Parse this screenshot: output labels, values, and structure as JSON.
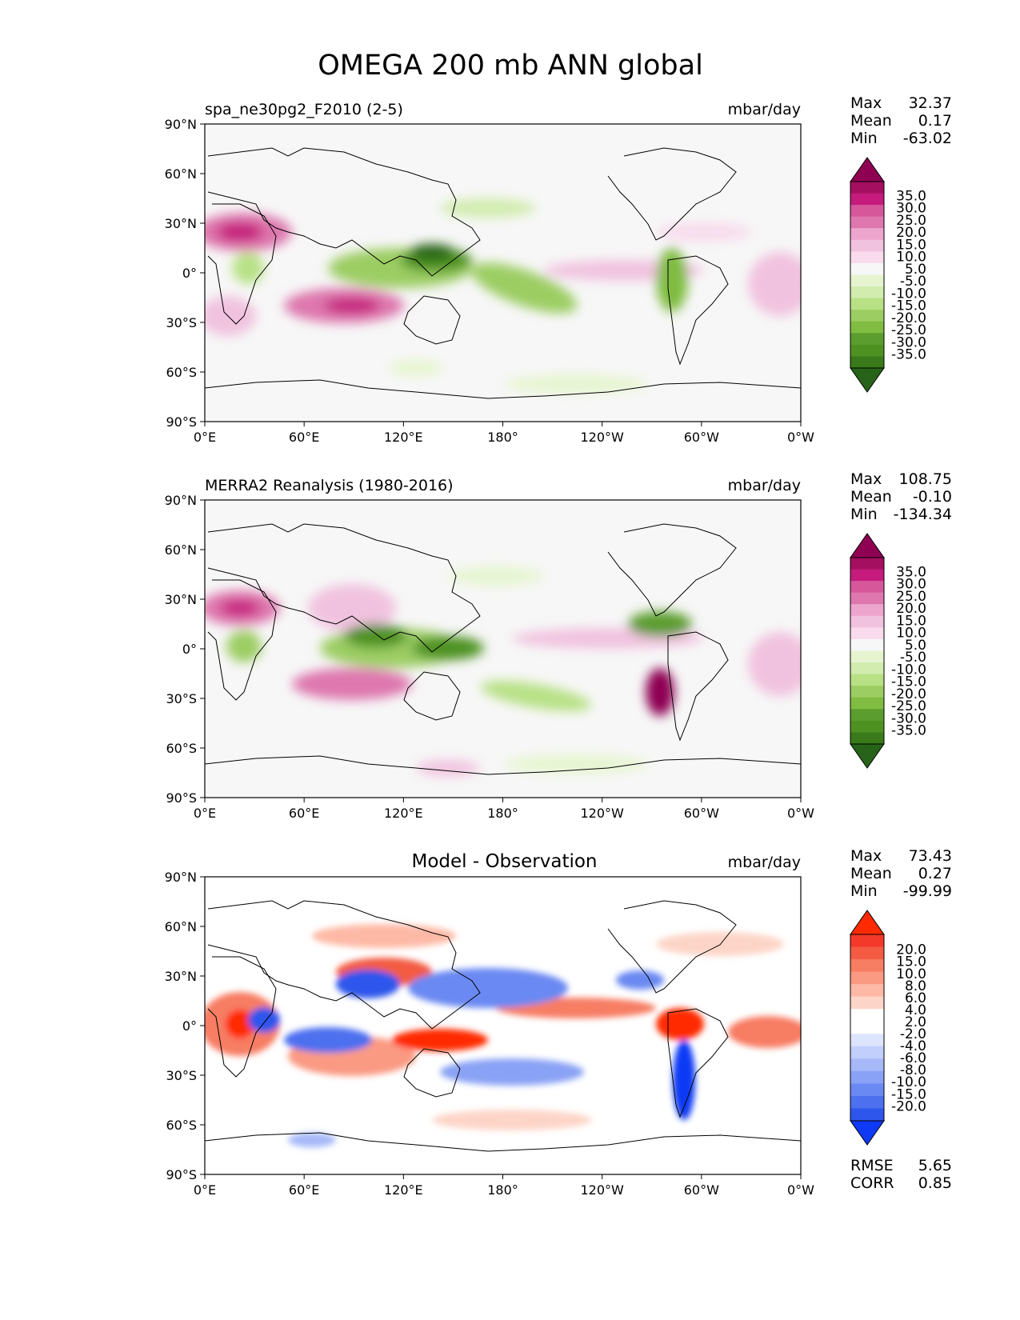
{
  "figure": {
    "title": "OMEGA 200 mb ANN global",
    "x_ticks": [
      "0°E",
      "60°E",
      "120°E",
      "180°",
      "120°W",
      "60°W",
      "0°W"
    ],
    "y_ticks": [
      "90°N",
      "60°N",
      "30°N",
      "0°",
      "30°S",
      "60°S",
      "90°S"
    ]
  },
  "panels": [
    {
      "title": "spa_ne30pg2_F2010 (2-5)",
      "units": "mbar/day",
      "stats": [
        {
          "label": "Max",
          "value": "32.37"
        },
        {
          "label": "Mean",
          "value": "0.17"
        },
        {
          "label": "Min",
          "value": "-63.02"
        }
      ],
      "colorbar": {
        "labels": [
          "35.0",
          "30.0",
          "25.0",
          "20.0",
          "15.0",
          "10.0",
          "5.0",
          "-5.0",
          "-10.0",
          "-15.0",
          "-20.0",
          "-25.0",
          "-30.0",
          "-35.0"
        ],
        "colors": [
          "#8e0152",
          "#a50f5f",
          "#c51b7d",
          "#d6589b",
          "#de77ae",
          "#eea5cd",
          "#f1c2df",
          "#f8dced",
          "#f7f7f7",
          "#e6f5d0",
          "#d1ecae",
          "#b8e186",
          "#9ccd63",
          "#7fbc41",
          "#5b9d2e",
          "#4d9221",
          "#3a7a1a",
          "#276419"
        ]
      },
      "colors": {
        "positive": "#c51b7d",
        "negative": "#4d9221",
        "background": "#f7f7f7"
      }
    },
    {
      "title": "MERRA2 Reanalysis (1980-2016)",
      "units": "mbar/day",
      "stats": [
        {
          "label": "Max",
          "value": "108.75"
        },
        {
          "label": "Mean",
          "value": "-0.10"
        },
        {
          "label": "Min",
          "value": "-134.34"
        }
      ],
      "colorbar": {
        "labels": [
          "35.0",
          "30.0",
          "25.0",
          "20.0",
          "15.0",
          "10.0",
          "5.0",
          "-5.0",
          "-10.0",
          "-15.0",
          "-20.0",
          "-25.0",
          "-30.0",
          "-35.0"
        ],
        "colors": [
          "#8e0152",
          "#a50f5f",
          "#c51b7d",
          "#d6589b",
          "#de77ae",
          "#eea5cd",
          "#f1c2df",
          "#f8dced",
          "#f7f7f7",
          "#e6f5d0",
          "#d1ecae",
          "#b8e186",
          "#9ccd63",
          "#7fbc41",
          "#5b9d2e",
          "#4d9221",
          "#3a7a1a",
          "#276419"
        ]
      },
      "colors": {
        "positive": "#c51b7d",
        "negative": "#4d9221",
        "background": "#f7f7f7"
      }
    },
    {
      "title": "Model - Observation",
      "units": "mbar/day",
      "stats": [
        {
          "label": "Max",
          "value": "73.43"
        },
        {
          "label": "Mean",
          "value": "0.27"
        },
        {
          "label": "Min",
          "value": "-99.99"
        }
      ],
      "colorbar": {
        "labels": [
          "20.0",
          "15.0",
          "10.0",
          "8.0",
          "6.0",
          "4.0",
          "2.0",
          "-2.0",
          "-4.0",
          "-6.0",
          "-8.0",
          "-10.0",
          "-15.0",
          "-20.0"
        ],
        "colors": [
          "#ff2a00",
          "#f4392a",
          "#f35b43",
          "#f77d63",
          "#fb9a83",
          "#fdb9a6",
          "#fdd5c8",
          "#ffffff",
          "#ffffff",
          "#dde4fd",
          "#c2cefb",
          "#a6b8f8",
          "#8aa2f5",
          "#6b89f2",
          "#4d70ef",
          "#2f56ec",
          "#0f3af5"
        ]
      },
      "colors": {
        "positive": "#f4392a",
        "negative": "#2f56ec",
        "background": "#ffffff"
      },
      "footer": [
        {
          "label": "RMSE",
          "value": "5.65"
        },
        {
          "label": "CORR",
          "value": "0.85"
        }
      ]
    }
  ]
}
